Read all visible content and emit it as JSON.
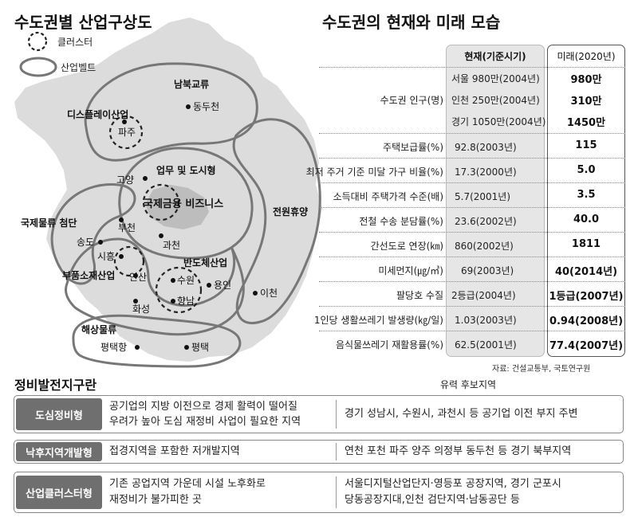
{
  "left_title": "수도권별 산업구상도",
  "legend": {
    "cluster": "클러스터",
    "belt": "산업벨트"
  },
  "map_labels": {
    "nambuk": "남북교류",
    "dongducheon": "동두천",
    "display": "디스플레이산업",
    "paju": "파주",
    "goyang": "고양",
    "business": "업무 및 도시형",
    "finance": "국제금융 비즈니스",
    "jeonwon": "전원휴양",
    "logistics": "국제물류 첨단",
    "bucheon": "부천",
    "songdo": "송도",
    "gwacheon": "과천",
    "siheung": "시흥",
    "semiconductor": "반도체산업",
    "parts": "부품소재산업",
    "ansan": "안산",
    "suwon": "수원",
    "yongin": "용인",
    "icheon": "이천",
    "hwaseong": "화성",
    "hyangnam": "향남",
    "marine": "해상물류",
    "pyeongtaekhang": "평택항",
    "pyeongtaek": "평택"
  },
  "right_title": "수도권의 현재와 미래 모습",
  "table": {
    "head_now": "현재(기준시기)",
    "head_future": "미래(2020년)",
    "population_label": "수도권 인구(명)",
    "population": [
      {
        "now": "서울 980만(2004년)",
        "future": "980만"
      },
      {
        "now": "인천 250만(2004년)",
        "future": "310만"
      },
      {
        "now": "경기 1050만(2004년)",
        "future": "1450만"
      }
    ],
    "rows": [
      {
        "label": "주택보급률(%)",
        "now": "92.8(2003년)",
        "future": "115"
      },
      {
        "label": "최저 주거 기준 미달 가구 비율(%)",
        "now": "17.3(2000년)",
        "future": "5.0"
      },
      {
        "label": "소득대비 주택가격 수준(배)",
        "now": "5.7(2001년)",
        "future": "3.5"
      },
      {
        "label": "전철 수송 분담률(%)",
        "now": "23.6(2002년)",
        "future": "40.0"
      },
      {
        "label": "간선도로 연장(㎞)",
        "now": "860(2002년)",
        "future": "1811"
      },
      {
        "label": "미세먼지(㎍/㎥)",
        "now": "69(2003년)",
        "future": "40(2014년)"
      },
      {
        "label": "팔당호 수질",
        "now": "2등급(2004년)",
        "future": "1등급(2007년)"
      },
      {
        "label": "1인당 생활쓰레기 발생량(㎏/일)",
        "now": "1.03(2003년)",
        "future": "0.94(2008년)"
      },
      {
        "label": "음식물쓰레기 재활용률(%)",
        "now": "62.5(2001년)",
        "future": "77.4(2007년)"
      }
    ],
    "source": "자료: 건설교통부, 국토연구원"
  },
  "zones": {
    "title": "정비발전지구란",
    "candidate_header": "유력 후보지역",
    "items": [
      {
        "name": "도심정비형",
        "desc1": "공기업의 지방 이전으로 경제 활력이 떨어질",
        "desc2": "우려가 높아 도심 재정비 사업이 필요한 지역",
        "region1": "경기 성남시, 수원시, 과천시  등 공기업 이전 부지 주변",
        "region2": ""
      },
      {
        "name": "낙후지역개발형",
        "desc1": "접경지역을 포함한 저개발지역",
        "desc2": "",
        "region1": "연천 포천 파주 양주 의정부 동두천 등 경기 북부지역",
        "region2": ""
      },
      {
        "name": "산업클러스터형",
        "desc1": "기존 공업지역 가운데 시설 노후화로",
        "desc2": "재정비가 불가피한 곳",
        "region1": "서울디지털산업단지·영등포 공장지역, 경기 군포시",
        "region2": "당동공장지대,인천 검단지역·남동공단 등"
      }
    ]
  }
}
